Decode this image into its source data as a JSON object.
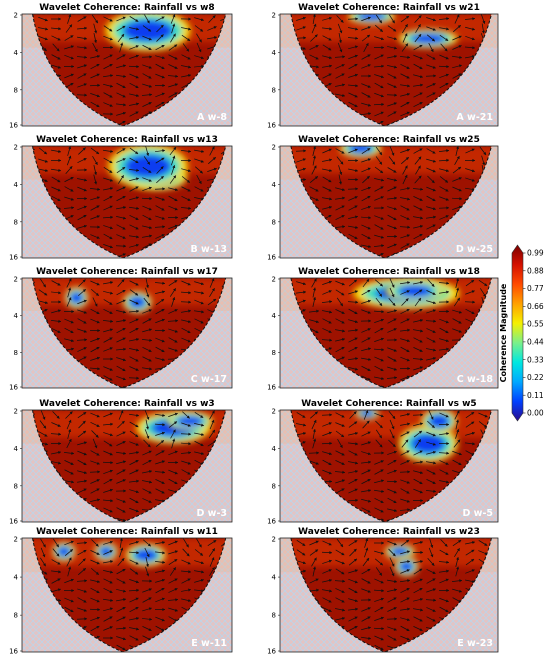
{
  "chart_data": {
    "type": "heatmap",
    "y_ticks": [
      "2",
      "4",
      "8",
      "16"
    ],
    "colorbar": {
      "label": "Coherence Magnitude",
      "ticks": [
        "0.00",
        "0.11",
        "0.22",
        "0.33",
        "0.44",
        "0.55",
        "0.66",
        "0.77",
        "0.88",
        "0.99"
      ],
      "range": [
        0.0,
        0.99
      ],
      "colors": [
        "#2a0a8c",
        "#0040ff",
        "#00a8ff",
        "#00e8e0",
        "#7af08a",
        "#f5f000",
        "#ffa000",
        "#ff4a00",
        "#d41000",
        "#7a0000"
      ]
    },
    "panels": [
      {
        "title": "Wavelet Coherence: Rainfall vs w8",
        "label": "A w-8",
        "lows": [
          {
            "x": 0.62,
            "y": 0.12,
            "rx": 0.1,
            "ry": 0.07
          },
          {
            "x": 0.6,
            "y": 0.15,
            "rx": 0.15,
            "ry": 0.13
          }
        ]
      },
      {
        "title": "Wavelet Coherence: Rainfall vs w21",
        "label": "A w-21",
        "lows": [
          {
            "x": 0.42,
            "y": 0.02,
            "rx": 0.08,
            "ry": 0.05
          },
          {
            "x": 0.68,
            "y": 0.22,
            "rx": 0.1,
            "ry": 0.06
          }
        ]
      },
      {
        "title": "Wavelet Coherence: Rainfall vs w13",
        "label": "B w-13",
        "lows": [
          {
            "x": 0.65,
            "y": 0.28,
            "rx": 0.1,
            "ry": 0.08
          },
          {
            "x": 0.6,
            "y": 0.18,
            "rx": 0.14,
            "ry": 0.14
          }
        ]
      },
      {
        "title": "Wavelet Coherence: Rainfall vs w25",
        "label": "D w-25",
        "lows": [
          {
            "x": 0.37,
            "y": 0.02,
            "rx": 0.07,
            "ry": 0.06
          }
        ]
      },
      {
        "title": "Wavelet Coherence: Rainfall vs w17",
        "label": "C w-17",
        "lows": [
          {
            "x": 0.26,
            "y": 0.18,
            "rx": 0.04,
            "ry": 0.07
          },
          {
            "x": 0.55,
            "y": 0.22,
            "rx": 0.05,
            "ry": 0.07
          }
        ]
      },
      {
        "title": "Wavelet Coherence: Rainfall vs w18",
        "label": "C w-18",
        "lows": [
          {
            "x": 0.58,
            "y": 0.14,
            "rx": 0.18,
            "ry": 0.1
          },
          {
            "x": 0.62,
            "y": 0.12,
            "rx": 0.1,
            "ry": 0.07
          }
        ]
      },
      {
        "title": "Wavelet Coherence: Rainfall vs w3",
        "label": "D w-3",
        "lows": [
          {
            "x": 0.72,
            "y": 0.16,
            "rx": 0.13,
            "ry": 0.1
          },
          {
            "x": 0.8,
            "y": 0.1,
            "rx": 0.08,
            "ry": 0.06
          }
        ]
      },
      {
        "title": "Wavelet Coherence: Rainfall vs w5",
        "label": "D w-5",
        "lows": [
          {
            "x": 0.68,
            "y": 0.3,
            "rx": 0.1,
            "ry": 0.12
          },
          {
            "x": 0.73,
            "y": 0.1,
            "rx": 0.06,
            "ry": 0.08
          },
          {
            "x": 0.4,
            "y": 0.03,
            "rx": 0.04,
            "ry": 0.04
          }
        ]
      },
      {
        "title": "Wavelet Coherence: Rainfall vs w11",
        "label": "E w-11",
        "lows": [
          {
            "x": 0.59,
            "y": 0.15,
            "rx": 0.07,
            "ry": 0.07
          },
          {
            "x": 0.2,
            "y": 0.12,
            "rx": 0.04,
            "ry": 0.06
          },
          {
            "x": 0.4,
            "y": 0.12,
            "rx": 0.04,
            "ry": 0.06
          }
        ]
      },
      {
        "title": "Wavelet Coherence: Rainfall vs w23",
        "label": "E w-23",
        "lows": [
          {
            "x": 0.55,
            "y": 0.12,
            "rx": 0.05,
            "ry": 0.05
          },
          {
            "x": 0.58,
            "y": 0.25,
            "rx": 0.04,
            "ry": 0.06
          }
        ]
      }
    ]
  }
}
